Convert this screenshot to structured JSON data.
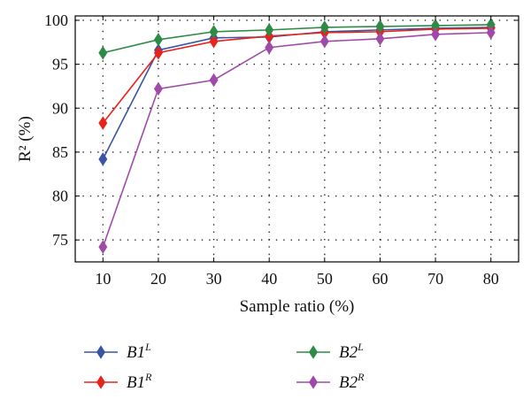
{
  "chart_data": {
    "type": "line",
    "xlabel": "Sample ratio (%)",
    "ylabel": "R² (%)",
    "x": [
      10,
      20,
      30,
      40,
      50,
      60,
      70,
      80
    ],
    "xlim": [
      5,
      85
    ],
    "ylim": [
      72.5,
      100.5
    ],
    "xticks": [
      10,
      20,
      30,
      40,
      50,
      60,
      70,
      80
    ],
    "yticks": [
      75,
      80,
      85,
      90,
      95,
      100
    ],
    "grid": true,
    "legend_position": "bottom",
    "series": [
      {
        "name": "B1",
        "sup": "L",
        "color": "#3a55a4",
        "values": [
          84.2,
          96.6,
          98.0,
          98.1,
          98.7,
          98.9,
          99.1,
          99.2
        ]
      },
      {
        "name": "B1",
        "sup": "R",
        "color": "#e8231c",
        "values": [
          88.3,
          96.3,
          97.6,
          98.2,
          98.6,
          98.7,
          99.0,
          99.1
        ]
      },
      {
        "name": "B2",
        "sup": "L",
        "color": "#2e8b46",
        "values": [
          96.3,
          97.8,
          98.7,
          98.9,
          99.2,
          99.3,
          99.4,
          99.5
        ]
      },
      {
        "name": "B2",
        "sup": "R",
        "color": "#a04aa8",
        "values": [
          74.2,
          92.2,
          93.2,
          96.9,
          97.6,
          97.9,
          98.4,
          98.6
        ]
      }
    ]
  }
}
